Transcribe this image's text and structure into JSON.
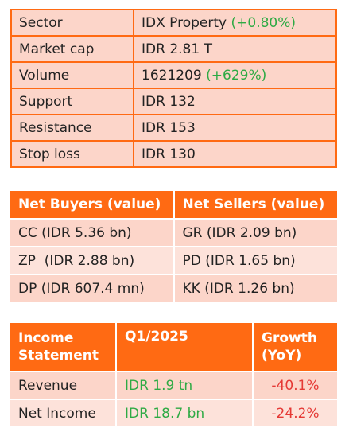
{
  "stock_info": {
    "rows": [
      {
        "label": "Sector",
        "value": "IDX Property",
        "change": "(+0.80%)"
      },
      {
        "label": "Market cap",
        "value": "IDR 2.81 T",
        "change": ""
      },
      {
        "label": "Volume",
        "value": "1621209",
        "change": "(+629%)"
      },
      {
        "label": "Support",
        "value": "IDR 132",
        "change": ""
      },
      {
        "label": "Resistance",
        "value": "IDR 153",
        "change": ""
      },
      {
        "label": "Stop loss",
        "value": "IDR 130",
        "change": ""
      }
    ]
  },
  "brokers": {
    "headers": {
      "buyers": "Net Buyers (value)",
      "sellers": "Net Sellers (value)"
    },
    "rows": [
      {
        "buyer": "CC (IDR 5.36 bn)",
        "seller": "GR (IDR 2.09 bn)"
      },
      {
        "buyer": "ZP  (IDR 2.88 bn)",
        "seller": "PD (IDR 1.65 bn)"
      },
      {
        "buyer": "DP (IDR 607.4 mn)",
        "seller": "KK (IDR 1.26 bn)"
      }
    ]
  },
  "income": {
    "headers": {
      "statement_line1": "Income",
      "statement_line2": "Statement",
      "period": "Q1/2025",
      "growth_line1": "Growth",
      "growth_line2": "(YoY)"
    },
    "rows": [
      {
        "item": "Revenue",
        "value": "IDR 1.9 tn",
        "growth": "-40.1%"
      },
      {
        "item": "Net Income",
        "value": "IDR 18.7 bn",
        "growth": "-24.2%"
      }
    ]
  },
  "colors": {
    "accent": "#ff6a13",
    "row_fill": "#fcd5c9",
    "row_fill_light": "#fde2da",
    "positive": "#2eaa44",
    "negative": "#e53935"
  }
}
